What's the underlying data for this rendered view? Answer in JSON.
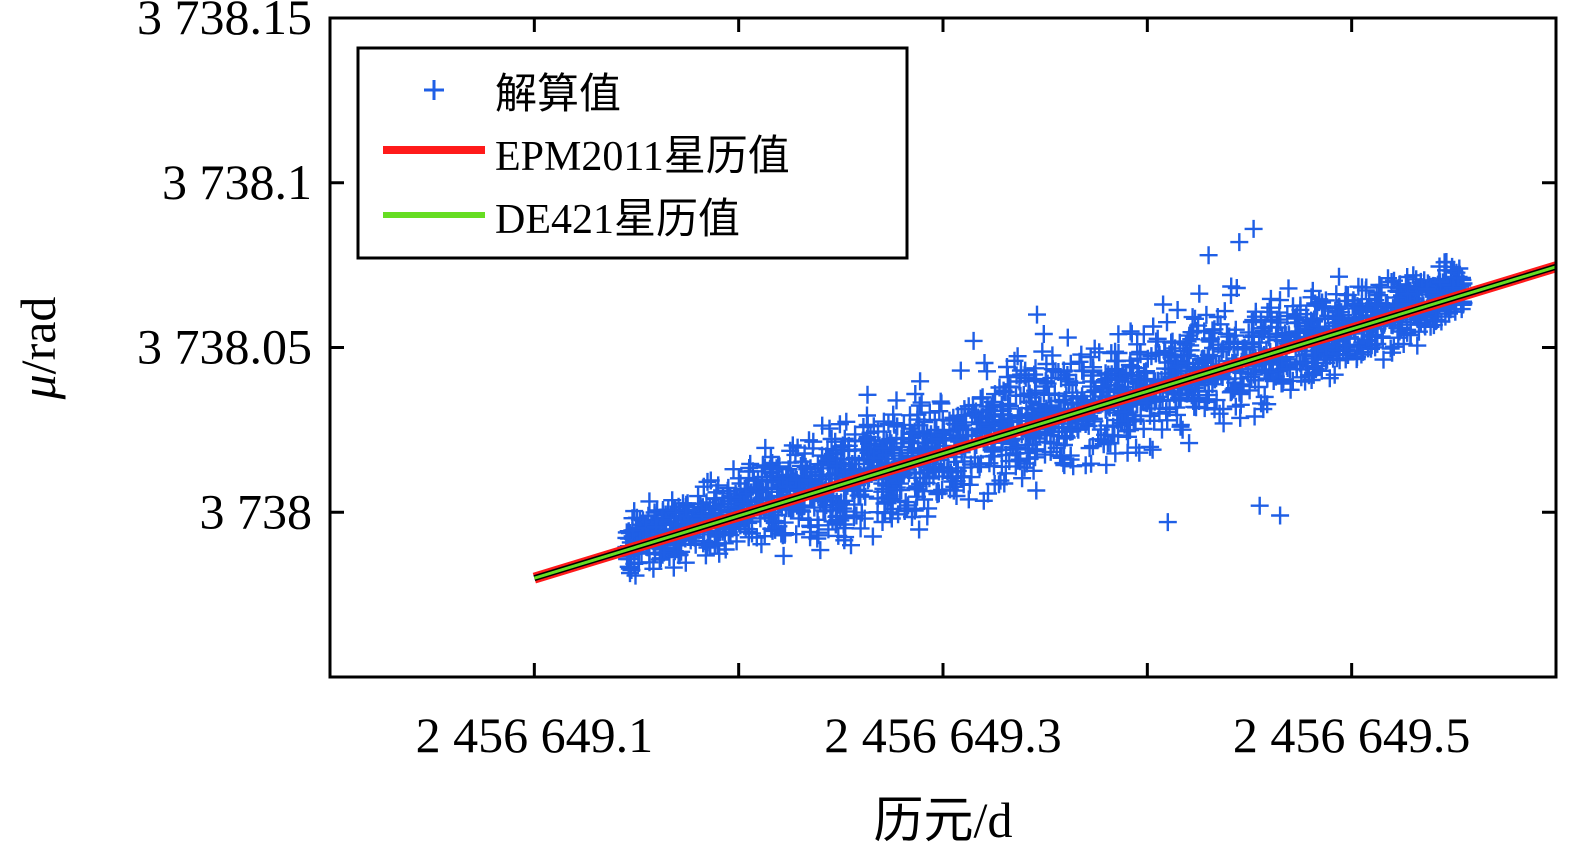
{
  "chart_data": {
    "type": "scatter",
    "xlabel": "历元/d",
    "ylabel": "μ/rad",
    "ylabel_symbol": "μ",
    "ylabel_unit": "/rad",
    "xlim": [
      2456649.0,
      2456649.6
    ],
    "ylim": [
      3737.95,
      3738.15
    ],
    "x_ticks": [
      2456649.1,
      2456649.2,
      2456649.3,
      2456649.4,
      2456649.5
    ],
    "x_tick_labels": [
      "2 456 649.1",
      "",
      "2 456 649.3",
      "",
      "2 456 649.5"
    ],
    "y_ticks": [
      3738.0,
      3738.05,
      3738.1,
      3738.15
    ],
    "y_tick_labels": [
      "3 738",
      "3 738.05",
      "3 738.1",
      "3 738.15"
    ],
    "legend_position": "top-left",
    "series": [
      {
        "name": "解算值",
        "kind": "scatter",
        "marker": "+",
        "color": "#1f5fe6",
        "x_range": [
          2456649.145,
          2456649.555
        ],
        "trend_start": 3737.99,
        "trend_slope_per_day": 0.189,
        "spread": 0.013,
        "point_count": 2200,
        "outliers": [
          [
            2456649.255,
            3737.99
          ],
          [
            2456649.268,
            3738.0
          ],
          [
            2456649.315,
            3738.052
          ],
          [
            2456649.346,
            3738.06
          ],
          [
            2456649.41,
            3737.997
          ],
          [
            2456649.43,
            3738.078
          ],
          [
            2456649.445,
            3738.082
          ],
          [
            2456649.455,
            3738.002
          ],
          [
            2456649.465,
            3737.999
          ],
          [
            2456649.452,
            3738.086
          ]
        ]
      },
      {
        "name": "EPM2011星历值",
        "kind": "line",
        "color": "#ff1a1a",
        "x": [
          2456649.1,
          2456649.6
        ],
        "y": [
          3737.98,
          3738.0745
        ]
      },
      {
        "name": "DE421星历值",
        "kind": "line",
        "color": "#66dd22",
        "x": [
          2456649.1,
          2456649.6
        ],
        "y": [
          3737.98,
          3738.0745
        ]
      }
    ]
  }
}
